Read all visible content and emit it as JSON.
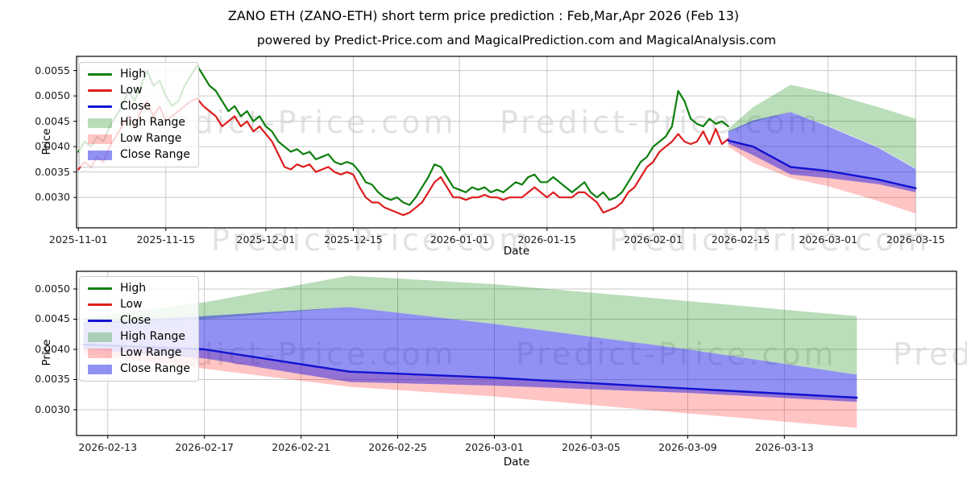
{
  "figure": {
    "title": "ZANO ETH (ZANO-ETH) short term price prediction : Feb,Mar,Apr 2026 (Feb 13)",
    "subtitle": "powered by Predict-Price.com and MagicalPrediction.com and MagicalAnalysis.com",
    "watermark_text": "Predict-Price.com"
  },
  "colors": {
    "high_line": "#0d7f0d",
    "low_line": "#de1e1e",
    "close_line": "#1212d0",
    "high_band": "rgba(0,128,0,0.27)",
    "low_band": "rgba(255,20,20,0.25)",
    "close_band": "rgba(25,25,230,0.48)",
    "grid": "#c9c9c9",
    "axis": "#000000",
    "watermark": "#e2e2e2"
  },
  "legend_items": [
    {
      "label": "High",
      "swatch": "line",
      "color_key": "high_line"
    },
    {
      "label": "Low",
      "swatch": "line",
      "color_key": "low_line"
    },
    {
      "label": "Close",
      "swatch": "line",
      "color_key": "close_line"
    },
    {
      "label": "High Range",
      "swatch": "fill",
      "color_key": "high_band"
    },
    {
      "label": "Low Range",
      "swatch": "fill",
      "color_key": "low_band"
    },
    {
      "label": "Close Range",
      "swatch": "fill",
      "color_key": "close_band"
    }
  ],
  "chart_data": [
    {
      "type": "line",
      "name": "history-with-prediction",
      "xlabel": "Date",
      "ylabel": "Price",
      "x_domain": [
        "2025-10-31T17:00:00Z",
        "2026-03-21T13:00:00Z"
      ],
      "y_domain": [
        0.0024,
        0.00578
      ],
      "x_ticks": [
        "2025-11-01",
        "2025-11-15",
        "2025-12-01",
        "2025-12-15",
        "2026-01-01",
        "2026-01-15",
        "2026-02-01",
        "2026-02-15",
        "2026-03-01",
        "2026-03-15"
      ],
      "y_ticks": [
        0.003,
        0.0035,
        0.004,
        0.0045,
        0.005,
        0.0055
      ],
      "grid": true,
      "legend_position": "upper-left",
      "series": {
        "high": {
          "label": "High",
          "start": "2025-11-01",
          "daily": [
            0.0039,
            0.0041,
            0.004,
            0.0042,
            0.0041,
            0.0044,
            0.0046,
            0.0048,
            0.0051,
            0.0049,
            0.0052,
            0.0055,
            0.0052,
            0.0053,
            0.005,
            0.0048,
            0.0049,
            0.0052,
            0.0054,
            0.0056,
            0.0054,
            0.0052,
            0.0051,
            0.0049,
            0.0047,
            0.0048,
            0.0046,
            0.0047,
            0.0045,
            0.0046,
            0.0044,
            0.0043,
            0.0041,
            0.004,
            0.0039,
            0.00395,
            0.00385,
            0.0039,
            0.00375,
            0.0038,
            0.00385,
            0.0037,
            0.00365,
            0.0037,
            0.00365,
            0.0035,
            0.0033,
            0.00325,
            0.0031,
            0.003,
            0.00295,
            0.003,
            0.0029,
            0.00285,
            0.003,
            0.0032,
            0.0034,
            0.00365,
            0.0036,
            0.0034,
            0.0032,
            0.00315,
            0.0031,
            0.0032,
            0.00315,
            0.0032,
            0.0031,
            0.00315,
            0.0031,
            0.0032,
            0.0033,
            0.00325,
            0.0034,
            0.00345,
            0.0033,
            0.0033,
            0.0034,
            0.0033,
            0.0032,
            0.0031,
            0.0032,
            0.0033,
            0.0031,
            0.003,
            0.0031,
            0.00295,
            0.003,
            0.0031,
            0.0033,
            0.0035,
            0.0037,
            0.0038,
            0.004,
            0.0041,
            0.0042,
            0.0044,
            0.0051,
            0.0049,
            0.00455,
            0.00445,
            0.0044,
            0.00455,
            0.00445,
            0.0045,
            0.0044
          ]
        },
        "low": {
          "label": "Low",
          "start": "2025-11-01",
          "daily": [
            0.00355,
            0.0037,
            0.0036,
            0.0038,
            0.0037,
            0.004,
            0.0042,
            0.0044,
            0.0046,
            0.0044,
            0.0047,
            0.0049,
            0.0046,
            0.0048,
            0.0045,
            0.0046,
            0.0047,
            0.0048,
            0.0049,
            0.00495,
            0.0048,
            0.0047,
            0.0046,
            0.0044,
            0.0045,
            0.0046,
            0.0044,
            0.0045,
            0.0043,
            0.0044,
            0.00425,
            0.0041,
            0.00385,
            0.0036,
            0.00355,
            0.00365,
            0.0036,
            0.00365,
            0.0035,
            0.00355,
            0.0036,
            0.0035,
            0.00345,
            0.0035,
            0.00345,
            0.0032,
            0.003,
            0.0029,
            0.0029,
            0.0028,
            0.00275,
            0.0027,
            0.00265,
            0.0027,
            0.0028,
            0.0029,
            0.0031,
            0.0033,
            0.0034,
            0.0032,
            0.003,
            0.003,
            0.00295,
            0.003,
            0.003,
            0.00305,
            0.003,
            0.003,
            0.00295,
            0.003,
            0.003,
            0.003,
            0.0031,
            0.0032,
            0.0031,
            0.003,
            0.0031,
            0.003,
            0.003,
            0.003,
            0.0031,
            0.0031,
            0.003,
            0.0029,
            0.0027,
            0.00275,
            0.0028,
            0.0029,
            0.0031,
            0.0032,
            0.0034,
            0.0036,
            0.0037,
            0.0039,
            0.004,
            0.0041,
            0.00425,
            0.0041,
            0.00405,
            0.0041,
            0.0043,
            0.00405,
            0.00435,
            0.00405,
            0.00415
          ]
        },
        "close": {
          "label": "Close",
          "dates": [
            "2026-02-13",
            "2026-02-17",
            "2026-02-23",
            "2026-03-01",
            "2026-03-09",
            "2026-03-15"
          ],
          "values": [
            0.00412,
            0.004,
            0.0036,
            0.00352,
            0.00335,
            0.00318
          ]
        }
      },
      "bands": {
        "high_range": {
          "label": "High Range",
          "dates": [
            "2026-02-13",
            "2026-02-17",
            "2026-02-23",
            "2026-03-01",
            "2026-03-09",
            "2026-03-15"
          ],
          "top": [
            0.00435,
            0.00478,
            0.00522,
            0.00506,
            0.00478,
            0.00455
          ],
          "bottom": [
            0.00428,
            0.00448,
            0.00468,
            0.00441,
            0.00399,
            0.00357
          ]
        },
        "low_range": {
          "label": "Low Range",
          "dates": [
            "2026-02-13",
            "2026-02-17",
            "2026-02-23",
            "2026-03-01",
            "2026-03-09",
            "2026-03-15"
          ],
          "top": [
            0.00414,
            0.00398,
            0.0036,
            0.0035,
            0.00333,
            0.00317
          ],
          "bottom": [
            0.004,
            0.00368,
            0.00338,
            0.00322,
            0.00293,
            0.00268
          ]
        },
        "close_range": {
          "label": "Close Range",
          "dates": [
            "2026-02-13",
            "2026-02-17",
            "2026-02-23",
            "2026-03-01",
            "2026-03-09",
            "2026-03-15"
          ],
          "top": [
            0.0043,
            0.00452,
            0.00468,
            0.0044,
            0.00398,
            0.00356
          ],
          "bottom": [
            0.00406,
            0.00383,
            0.00345,
            0.00338,
            0.00326,
            0.0031
          ]
        }
      }
    },
    {
      "type": "line",
      "name": "prediction-detail",
      "xlabel": "Date",
      "ylabel": "Price",
      "x_domain": [
        "2026-02-11T17:00:00Z",
        "2026-03-20T03:00:00Z"
      ],
      "y_domain": [
        0.002573,
        0.005293
      ],
      "x_ticks": [
        "2026-02-13",
        "2026-02-17",
        "2026-02-21",
        "2026-02-25",
        "2026-03-01",
        "2026-03-05",
        "2026-03-09",
        "2026-03-13"
      ],
      "y_ticks": [
        0.003,
        0.0035,
        0.004,
        0.0045,
        0.005
      ],
      "grid": true,
      "legend_position": "upper-left",
      "series": {
        "close": {
          "label": "Close",
          "dates": [
            "2026-02-12",
            "2026-02-17",
            "2026-02-23",
            "2026-03-01",
            "2026-03-09",
            "2026-03-16"
          ],
          "values": [
            0.00408,
            0.004,
            0.00363,
            0.00353,
            0.00335,
            0.0032
          ]
        }
      },
      "bands": {
        "high_range": {
          "label": "High Range",
          "dates": [
            "2026-02-12",
            "2026-02-17",
            "2026-02-23",
            "2026-03-01",
            "2026-03-09",
            "2026-03-16"
          ],
          "top": [
            0.00452,
            0.00478,
            0.00522,
            0.00508,
            0.0048,
            0.00455
          ],
          "bottom": [
            0.00442,
            0.0045,
            0.0047,
            0.00442,
            0.004,
            0.00358
          ]
        },
        "low_range": {
          "label": "Low Range",
          "dates": [
            "2026-02-12",
            "2026-02-17",
            "2026-02-23",
            "2026-03-01",
            "2026-03-09",
            "2026-03-16"
          ],
          "top": [
            0.00406,
            0.00398,
            0.00362,
            0.00352,
            0.00334,
            0.00319
          ],
          "bottom": [
            0.00392,
            0.00368,
            0.00338,
            0.00322,
            0.00294,
            0.0027
          ]
        },
        "close_range": {
          "label": "Close Range",
          "dates": [
            "2026-02-12",
            "2026-02-17",
            "2026-02-23",
            "2026-03-01",
            "2026-03-09",
            "2026-03-16"
          ],
          "top": [
            0.00445,
            0.00455,
            0.0047,
            0.00442,
            0.004,
            0.00358
          ],
          "bottom": [
            0.004,
            0.00385,
            0.00346,
            0.0034,
            0.00328,
            0.00313
          ]
        }
      }
    }
  ]
}
